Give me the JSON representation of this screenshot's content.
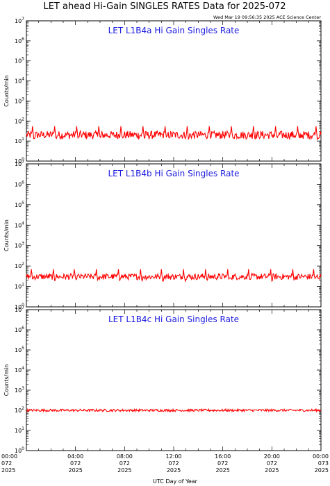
{
  "header": {
    "title": "LET ahead Hi-Gain SINGLES RATES Data for 2025-072",
    "timestamp": "Wed Mar 19 09:56:35 2025 ACE Science Center"
  },
  "chart_data": [
    {
      "type": "line",
      "title": "LET L1B4a Hi Gain Singles Rate",
      "ylabel": "Counts/min",
      "xlabel": "UTC Day of Year",
      "yscale": "log",
      "ylim": [
        1,
        10000000
      ],
      "xlim": [
        0,
        24
      ],
      "color": "#ff0000",
      "baseline": 20,
      "noise": 0.2,
      "spikes": [
        0.5,
        2.3,
        4.1,
        5.9,
        7.7,
        9.5,
        11.3,
        13.1,
        14.9,
        16.7,
        18.5,
        20.3,
        22.1,
        23.6
      ],
      "spike_value": 55
    },
    {
      "type": "line",
      "title": "LET L1B4b Hi Gain Singles Rate",
      "ylabel": "Counts/min",
      "xlabel": "UTC Day of Year",
      "yscale": "log",
      "ylim": [
        1,
        10000000
      ],
      "xlim": [
        0,
        24
      ],
      "color": "#ff0000",
      "baseline": 30,
      "noise": 0.15,
      "spikes": [
        0.4,
        2.2,
        3.9,
        5.7,
        7.5,
        9.3,
        11.0,
        12.8,
        14.6,
        16.4,
        18.1,
        19.9,
        21.7,
        23.4
      ],
      "spike_value": 70
    },
    {
      "type": "line",
      "title": "LET L1B4c Hi Gain Singles Rate",
      "ylabel": "Counts/min",
      "xlabel": "UTC Day of Year",
      "yscale": "log",
      "ylim": [
        1,
        10000000
      ],
      "xlim": [
        0,
        24
      ],
      "color": "#ff0000",
      "baseline": 100,
      "noise": 0.06,
      "spikes": [],
      "spike_value": 0
    }
  ],
  "x_ticks": [
    {
      "time": "00:00",
      "doy": "072",
      "year": "2025"
    },
    {
      "time": "04:00",
      "doy": "072",
      "year": "2025"
    },
    {
      "time": "08:00",
      "doy": "072",
      "year": "2025"
    },
    {
      "time": "12:00",
      "doy": "072",
      "year": "2025"
    },
    {
      "time": "16:00",
      "doy": "072",
      "year": "2025"
    },
    {
      "time": "20:00",
      "doy": "072",
      "year": "2025"
    },
    {
      "time": "00:00",
      "doy": "073",
      "year": "2025"
    }
  ],
  "x_axis_label": "UTC Day of Year",
  "y_axis_label": "Counts/min"
}
